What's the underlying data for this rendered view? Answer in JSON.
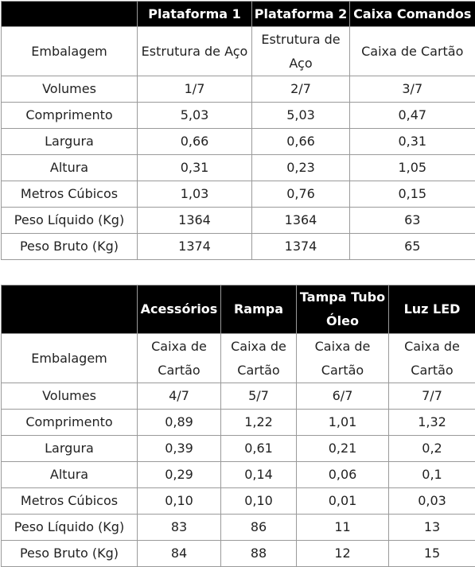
{
  "table1": {
    "headers": [
      "",
      "Plataforma 1",
      "Plataforma 2",
      "Caixa Comandos"
    ],
    "rows": [
      [
        "Embalagem",
        "Estrutura de Aço",
        "Estrutura de Aço",
        "Caixa de Cartão"
      ],
      [
        "Volumes",
        "1/7",
        "2/7",
        "3/7"
      ],
      [
        "Comprimento",
        "5,03",
        "5,03",
        "0,47"
      ],
      [
        "Largura",
        "0,66",
        "0,66",
        "0,31"
      ],
      [
        "Altura",
        "0,31",
        "0,23",
        "1,05"
      ],
      [
        "Metros Cúbicos",
        "1,03",
        "0,76",
        "0,15"
      ],
      [
        "Peso Líquido (Kg)",
        "1364",
        "1364",
        "63"
      ],
      [
        "Peso Bruto (Kg)",
        "1374",
        "1374",
        "65"
      ]
    ]
  },
  "table2": {
    "headers": [
      "",
      "Acessórios",
      "Rampa",
      "Tampa Tubo Óleo",
      "Luz LED"
    ],
    "rows": [
      [
        "Embalagem",
        "Caixa de Cartão",
        "Caixa de Cartão",
        "Caixa de Cartão",
        "Caixa de Cartão"
      ],
      [
        "Volumes",
        "4/7",
        "5/7",
        "6/7",
        "7/7"
      ],
      [
        "Comprimento",
        "0,89",
        "1,22",
        "1,01",
        "1,32"
      ],
      [
        "Largura",
        "0,39",
        "0,61",
        "0,21",
        "0,2"
      ],
      [
        "Altura",
        "0,29",
        "0,14",
        "0,06",
        "0,1"
      ],
      [
        "Metros Cúbicos",
        "0,10",
        "0,10",
        "0,01",
        "0,03"
      ],
      [
        "Peso Líquido (Kg)",
        "83",
        "86",
        "11",
        "13"
      ],
      [
        "Peso Bruto (Kg)",
        "84",
        "88",
        "12",
        "15"
      ]
    ]
  }
}
